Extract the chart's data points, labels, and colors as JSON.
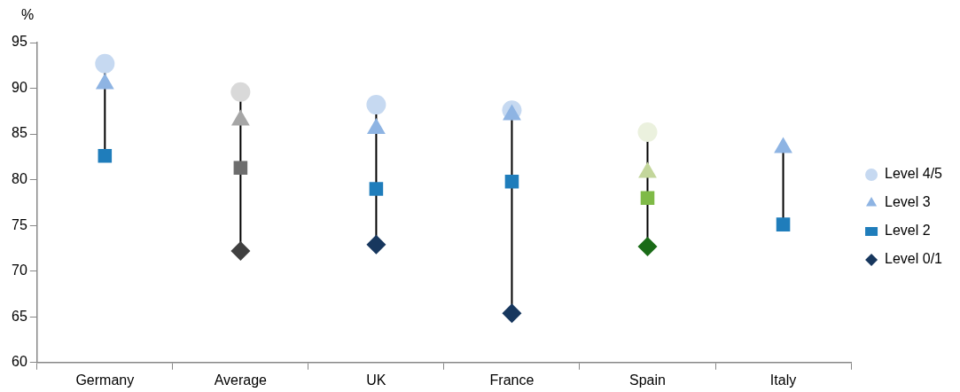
{
  "chart_data": {
    "type": "scatter",
    "ylabel": "%",
    "categories": [
      "Germany",
      "Average",
      "UK",
      "France",
      "Spain",
      "Italy"
    ],
    "ylim": [
      60,
      95
    ],
    "yticks": [
      60,
      65,
      70,
      75,
      80,
      85,
      90,
      95
    ],
    "grid": false,
    "legend": "right",
    "series": [
      {
        "name": "Level 4/5",
        "marker": "circle",
        "color": "#c6d9f1",
        "colors": [
          "#c6d9f1",
          "#d9d9d9",
          "#c6d9f1",
          "#c6d9f1",
          "#ebf1de",
          "#c6d9f1"
        ],
        "values": [
          92.7,
          89.6,
          88.2,
          87.6,
          85.2,
          null
        ]
      },
      {
        "name": "Level 3",
        "marker": "triangle",
        "color": "#8eb4e3",
        "colors": [
          "#8eb4e3",
          "#a6a6a6",
          "#8eb4e3",
          "#8eb4e3",
          "#c3d69b",
          "#8eb4e3"
        ],
        "values": [
          90.5,
          86.5,
          85.6,
          87.1,
          80.8,
          83.5
        ]
      },
      {
        "name": "Level 2",
        "marker": "square",
        "color": "#1f7dbb",
        "colors": [
          "#1f7dbb",
          "#6d6d6d",
          "#1f7dbb",
          "#1f7dbb",
          "#7fba47",
          "#1f7dbb"
        ],
        "values": [
          82.6,
          81.3,
          79.0,
          79.8,
          78.0,
          75.1
        ]
      },
      {
        "name": "Level 0/1",
        "marker": "diamond",
        "color": "#17375e",
        "colors": [
          "#17375e",
          "#404040",
          "#17375e",
          "#17375e",
          "#1a6b17",
          "#17375e"
        ],
        "values": [
          null,
          72.2,
          72.9,
          65.4,
          72.7,
          null
        ]
      }
    ]
  }
}
